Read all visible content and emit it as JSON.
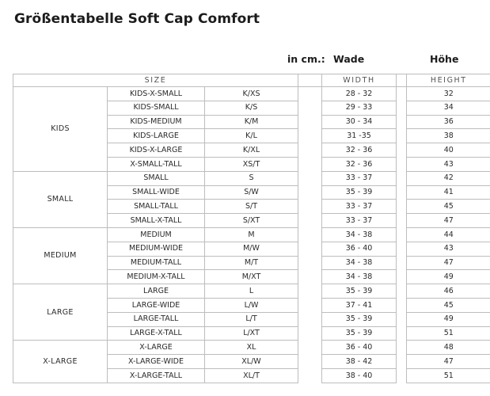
{
  "title": "Größentabelle Soft Cap Comfort",
  "units_label": "in cm.:",
  "wade_label": "Wade",
  "hoehe_label": "Höhe",
  "headers": {
    "size": "SIZE",
    "width": "WIDTH",
    "height": "HEIGHT"
  },
  "groups": [
    {
      "name": "KIDS",
      "rows": [
        {
          "size": "KIDS-X-SMALL",
          "code": "K/XS",
          "width": "28 - 32",
          "height": "32"
        },
        {
          "size": "KIDS-SMALL",
          "code": "K/S",
          "width": "29 - 33",
          "height": "34"
        },
        {
          "size": "KIDS-MEDIUM",
          "code": "K/M",
          "width": "30 - 34",
          "height": "36"
        },
        {
          "size": "KIDS-LARGE",
          "code": "K/L",
          "width": "31 -35",
          "height": "38"
        },
        {
          "size": "KIDS-X-LARGE",
          "code": "K/XL",
          "width": "32 - 36",
          "height": "40"
        },
        {
          "size": "X-SMALL-TALL",
          "code": "XS/T",
          "width": "32 - 36",
          "height": "43"
        }
      ]
    },
    {
      "name": "SMALL",
      "rows": [
        {
          "size": "SMALL",
          "code": "S",
          "width": "33 - 37",
          "height": "42"
        },
        {
          "size": "SMALL-WIDE",
          "code": "S/W",
          "width": "35 - 39",
          "height": "41"
        },
        {
          "size": "SMALL-TALL",
          "code": "S/T",
          "width": "33 - 37",
          "height": "45"
        },
        {
          "size": "SMALL-X-TALL",
          "code": "S/XT",
          "width": "33 - 37",
          "height": "47"
        }
      ]
    },
    {
      "name": "MEDIUM",
      "rows": [
        {
          "size": "MEDIUM",
          "code": "M",
          "width": "34 - 38",
          "height": "44"
        },
        {
          "size": "MEDIUM-WIDE",
          "code": "M/W",
          "width": "36 - 40",
          "height": "43"
        },
        {
          "size": "MEDIUM-TALL",
          "code": "M/T",
          "width": "34 - 38",
          "height": "47"
        },
        {
          "size": "MEDIUM-X-TALL",
          "code": "M/XT",
          "width": "34 - 38",
          "height": "49"
        }
      ]
    },
    {
      "name": "LARGE",
      "rows": [
        {
          "size": "LARGE",
          "code": "L",
          "width": "35 - 39",
          "height": "46"
        },
        {
          "size": "LARGE-WIDE",
          "code": "L/W",
          "width": "37 - 41",
          "height": "45"
        },
        {
          "size": "LARGE-TALL",
          "code": "L/T",
          "width": "35 - 39",
          "height": "49"
        },
        {
          "size": "LARGE-X-TALL",
          "code": "L/XT",
          "width": "35 - 39",
          "height": "51"
        }
      ]
    },
    {
      "name": "X-LARGE",
      "rows": [
        {
          "size": "X-LARGE",
          "code": "XL",
          "width": "36 - 40",
          "height": "48"
        },
        {
          "size": "X-LARGE-WIDE",
          "code": "XL/W",
          "width": "38 - 42",
          "height": "47"
        },
        {
          "size": "X-LARGE-TALL",
          "code": "XL/T",
          "width": "38 - 40",
          "height": "51"
        }
      ]
    }
  ]
}
